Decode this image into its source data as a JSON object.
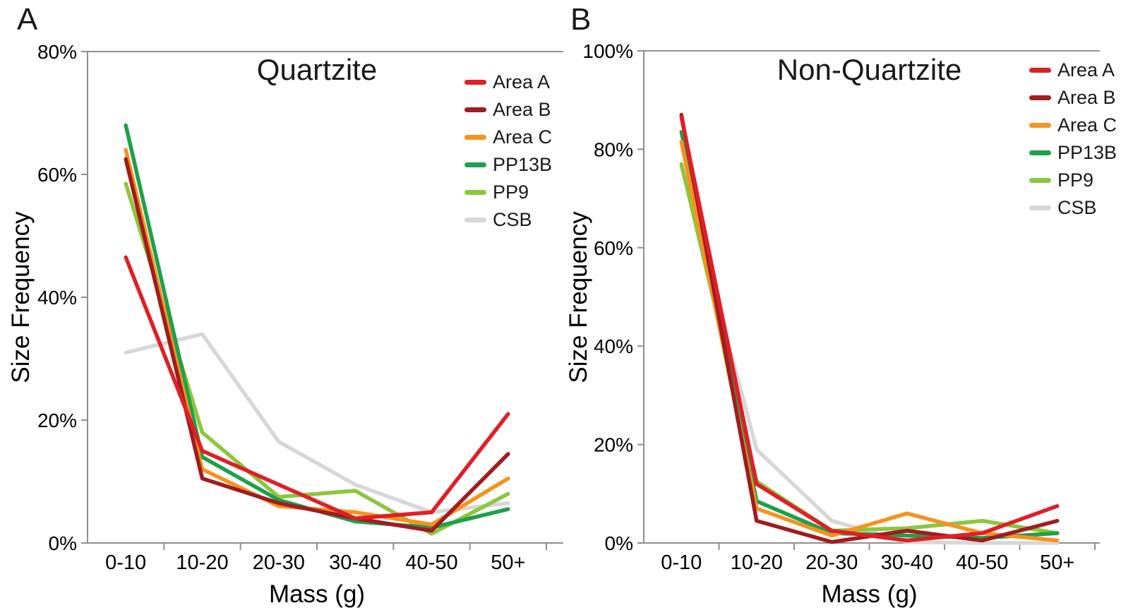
{
  "figure": {
    "panel_a_letter": "A",
    "panel_b_letter": "B",
    "axis_color": "#8f8f8f",
    "text_color": "#000000"
  },
  "chart_data": [
    {
      "type": "line",
      "panel_label": "A",
      "title": "Quartzite",
      "xlabel": "Mass (g)",
      "ylabel": "Size Frequency",
      "categories": [
        "0-10",
        "10-20",
        "20-30",
        "30-40",
        "40-50",
        "50+"
      ],
      "ylim": [
        0,
        80
      ],
      "ytick_labels": [
        "0%",
        "20%",
        "40%",
        "60%",
        "80%"
      ],
      "grid": false,
      "legend_position": "top-right",
      "legend_entries": [
        "Area A",
        "Area B",
        "Area C",
        "PP13B",
        "PP9",
        "CSB"
      ],
      "series": [
        {
          "name": "Area A",
          "color": "#e01f26",
          "values": [
            46.5,
            15,
            9.5,
            4,
            5,
            21
          ]
        },
        {
          "name": "Area B",
          "color": "#a01c21",
          "values": [
            62.5,
            10.5,
            6.5,
            4,
            2,
            14.5
          ]
        },
        {
          "name": "Area C",
          "color": "#f6921e",
          "values": [
            64,
            12,
            6,
            5,
            3,
            10.5
          ]
        },
        {
          "name": "PP13B",
          "color": "#1ea04c",
          "values": [
            68,
            14,
            7,
            3.5,
            2.5,
            5.5
          ]
        },
        {
          "name": "PP9",
          "color": "#8cc63e",
          "values": [
            58.5,
            18,
            7.5,
            8.5,
            1.5,
            8
          ]
        },
        {
          "name": "CSB",
          "color": "#d7d7d7",
          "values": [
            31,
            34,
            16.5,
            9.5,
            5,
            6.5
          ]
        }
      ]
    },
    {
      "type": "line",
      "panel_label": "B",
      "title": "Non-Quartzite",
      "xlabel": "Mass (g)",
      "ylabel": "Size Frequency",
      "categories": [
        "0-10",
        "10-20",
        "20-30",
        "30-40",
        "40-50",
        "50+"
      ],
      "ylim": [
        0,
        100
      ],
      "ytick_labels": [
        "0%",
        "20%",
        "40%",
        "60%",
        "80%",
        "100%"
      ],
      "grid": false,
      "legend_position": "top-right",
      "legend_entries": [
        "Area A",
        "Area B",
        "Area C",
        "PP13B",
        "PP9",
        "CSB"
      ],
      "series": [
        {
          "name": "Area A",
          "color": "#e01f26",
          "values": [
            86.5,
            12,
            2.5,
            0.5,
            2,
            7.5
          ]
        },
        {
          "name": "Area B",
          "color": "#a01c21",
          "values": [
            87,
            4.5,
            0.2,
            2.5,
            0.5,
            4.5
          ]
        },
        {
          "name": "Area C",
          "color": "#f6921e",
          "values": [
            81.5,
            7,
            1.5,
            6,
            2,
            0.5
          ]
        },
        {
          "name": "PP13B",
          "color": "#1ea04c",
          "values": [
            83.5,
            8.5,
            2,
            1.5,
            1,
            2
          ]
        },
        {
          "name": "PP9",
          "color": "#8cc63e",
          "values": [
            77,
            12.5,
            2.5,
            3,
            4.5,
            2
          ]
        },
        {
          "name": "CSB",
          "color": "#d7d7d7",
          "values": [
            76.5,
            19,
            4.5,
            0.2,
            0,
            0
          ]
        }
      ]
    }
  ]
}
